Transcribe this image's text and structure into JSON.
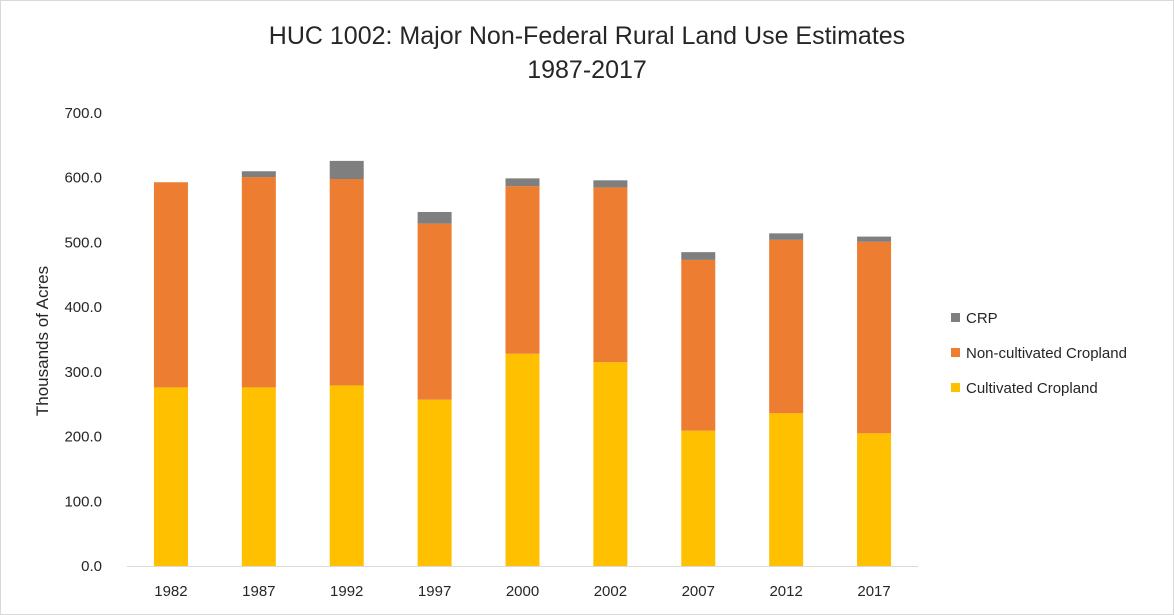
{
  "chart_data": {
    "type": "bar",
    "stacked": true,
    "title": "HUC 1002: Major Non-Federal Rural Land Use Estimates",
    "subtitle": "1987-2017",
    "xlabel": "",
    "ylabel": "Thousands of Acres",
    "ylim": [
      0,
      700
    ],
    "y_ticks": [
      "0.0",
      "100.0",
      "200.0",
      "300.0",
      "400.0",
      "500.0",
      "600.0",
      "700.0"
    ],
    "grid": false,
    "legend_position": "right",
    "categories": [
      "1982",
      "1987",
      "1992",
      "1997",
      "2000",
      "2002",
      "2007",
      "2012",
      "2017"
    ],
    "series": [
      {
        "name": "Cultivated Cropland",
        "color": "#ffc000",
        "values": [
          276.0,
          276.0,
          279.0,
          257.0,
          328.0,
          315.0,
          209.0,
          236.0,
          205.0
        ]
      },
      {
        "name": "Non-cultivated Cropland",
        "color": "#ed7d31",
        "values": [
          317.0,
          325.0,
          319.0,
          272.0,
          259.0,
          270.0,
          264.0,
          268.0,
          296.0
        ]
      },
      {
        "name": "CRP",
        "color": "#7f7f7f",
        "values": [
          0.0,
          9.0,
          28.0,
          18.0,
          12.0,
          11.0,
          12.0,
          10.0,
          8.0
        ]
      }
    ],
    "legend_order": [
      "CRP",
      "Non-cultivated Cropland",
      "Cultivated Cropland"
    ]
  }
}
